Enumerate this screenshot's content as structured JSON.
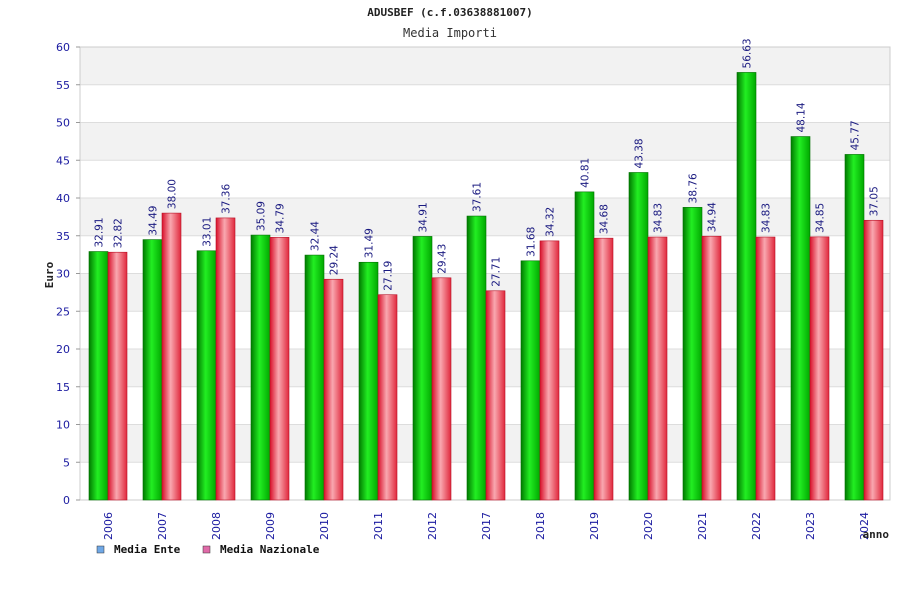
{
  "chart_data": {
    "type": "bar",
    "title": "ADUSBEF (c.f.03638881007)",
    "subtitle": "Media Importi",
    "xlabel": "anno",
    "ylabel": "Euro",
    "ylim": [
      0,
      60
    ],
    "yticks": [
      0,
      5,
      10,
      15,
      20,
      25,
      30,
      35,
      40,
      45,
      50,
      55,
      60
    ],
    "categories": [
      "2006",
      "2007",
      "2008",
      "2009",
      "2010",
      "2011",
      "2012",
      "2017",
      "2018",
      "2019",
      "2020",
      "2021",
      "2022",
      "2023",
      "2024"
    ],
    "series": [
      {
        "name": "Media Ente",
        "color": "#00c400",
        "values": [
          32.91,
          34.49,
          33.01,
          35.09,
          32.44,
          31.49,
          34.91,
          37.61,
          31.68,
          40.81,
          43.38,
          38.76,
          56.63,
          48.14,
          45.77
        ],
        "labels": [
          "32.91",
          "34.49",
          "33.01",
          "35.09",
          "32.44",
          "31.49",
          "34.91",
          "37.61",
          "31.68",
          "40.81",
          "43.38",
          "38.76",
          "56.63",
          "48.14",
          "45.77"
        ]
      },
      {
        "name": "Media Nazionale",
        "color": "#e8283c",
        "values": [
          32.82,
          38.0,
          37.36,
          34.79,
          29.24,
          27.19,
          29.43,
          27.71,
          34.32,
          34.68,
          34.83,
          34.94,
          34.83,
          34.85,
          37.05
        ],
        "labels": [
          "32.82",
          "38.00",
          "37.36",
          "34.79",
          "29.24",
          "27.19",
          "29.43",
          "27.71",
          "34.32",
          "34.68",
          "34.83",
          "34.94",
          "34.83",
          "34.85",
          "37.05"
        ]
      }
    ],
    "legend": [
      {
        "label": "Media Ente",
        "color": "#6fa8e6"
      },
      {
        "label": "Media Nazionale",
        "color": "#e06aa8"
      }
    ],
    "grid": true,
    "legend_position": "bottom-left"
  }
}
